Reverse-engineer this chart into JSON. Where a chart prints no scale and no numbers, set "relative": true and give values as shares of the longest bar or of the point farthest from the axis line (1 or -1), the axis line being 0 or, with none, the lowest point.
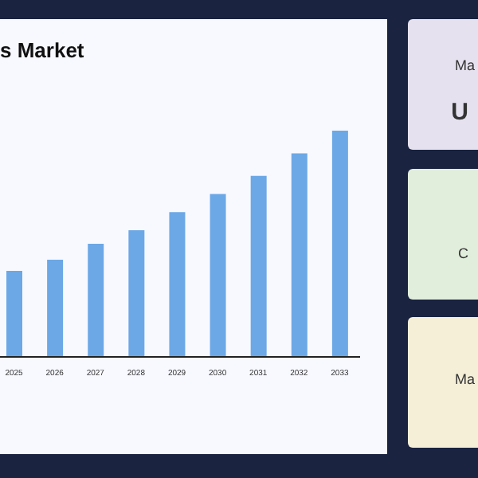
{
  "chart_data": {
    "type": "bar",
    "title": "s Market",
    "relative": true,
    "categories": [
      "2025",
      "2026",
      "2027",
      "2028",
      "2029",
      "2030",
      "2031",
      "2032",
      "2033"
    ],
    "values": [
      0.38,
      0.43,
      0.5,
      0.56,
      0.64,
      0.72,
      0.8,
      0.9,
      1
    ],
    "color": "#6ca8e6",
    "annotations": [
      "Ma",
      "U",
      "C",
      "Ma"
    ]
  }
}
